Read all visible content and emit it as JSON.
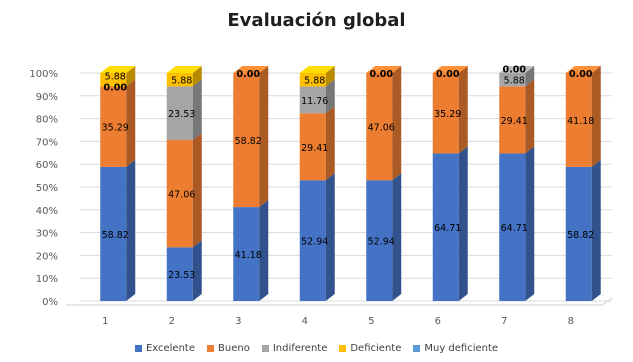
{
  "chart_data": {
    "type": "bar",
    "stacked": true,
    "percent": true,
    "title": "Evaluación global",
    "xlabel": "",
    "ylabel": "",
    "ylim": [
      0,
      100
    ],
    "yticks": [
      "0%",
      "10%",
      "20%",
      "30%",
      "40%",
      "50%",
      "60%",
      "70%",
      "80%",
      "90%",
      "100%"
    ],
    "categories": [
      "1",
      "2",
      "3",
      "4",
      "5",
      "6",
      "7",
      "8"
    ],
    "grid": true,
    "legend_position": "bottom",
    "series": [
      {
        "name": "Excelente",
        "color": "#4472C4",
        "values": [
          58.82,
          23.53,
          41.18,
          52.94,
          52.94,
          64.71,
          64.71,
          58.82
        ],
        "labels": [
          "58.82",
          "23.53",
          "41.18",
          "52.94",
          "52.94",
          "64.71",
          "64.71",
          "58.82"
        ]
      },
      {
        "name": "Bueno",
        "color": "#ED7D31",
        "values": [
          35.29,
          47.06,
          58.82,
          29.41,
          47.06,
          35.29,
          29.41,
          41.18
        ],
        "labels": [
          "35.29",
          "47.06",
          "58.82",
          "29.41",
          "47.06",
          "35.29",
          "29.41",
          "41.18"
        ]
      },
      {
        "name": "Indiferente",
        "color": "#A5A5A5",
        "values": [
          0,
          23.53,
          0,
          11.76,
          0,
          0,
          5.88,
          0
        ],
        "labels": [
          "0.00",
          "23.53",
          "",
          "11.76",
          "",
          "",
          "5.88",
          ""
        ]
      },
      {
        "name": "Deficiente",
        "color": "#FFC000",
        "values": [
          5.88,
          5.88,
          0,
          5.88,
          0,
          0,
          0,
          0
        ],
        "labels": [
          "5.88",
          "5.88",
          "0.00",
          "5.88",
          "0.00",
          "0.00",
          "0.00",
          "0.00"
        ]
      },
      {
        "name": "Muy deficiente",
        "color": "#5B9BD5",
        "values": [
          0,
          0,
          0,
          0,
          0,
          0,
          0,
          0
        ],
        "labels": [
          "",
          "",
          "",
          "",
          "",
          "",
          "",
          ""
        ]
      }
    ]
  }
}
